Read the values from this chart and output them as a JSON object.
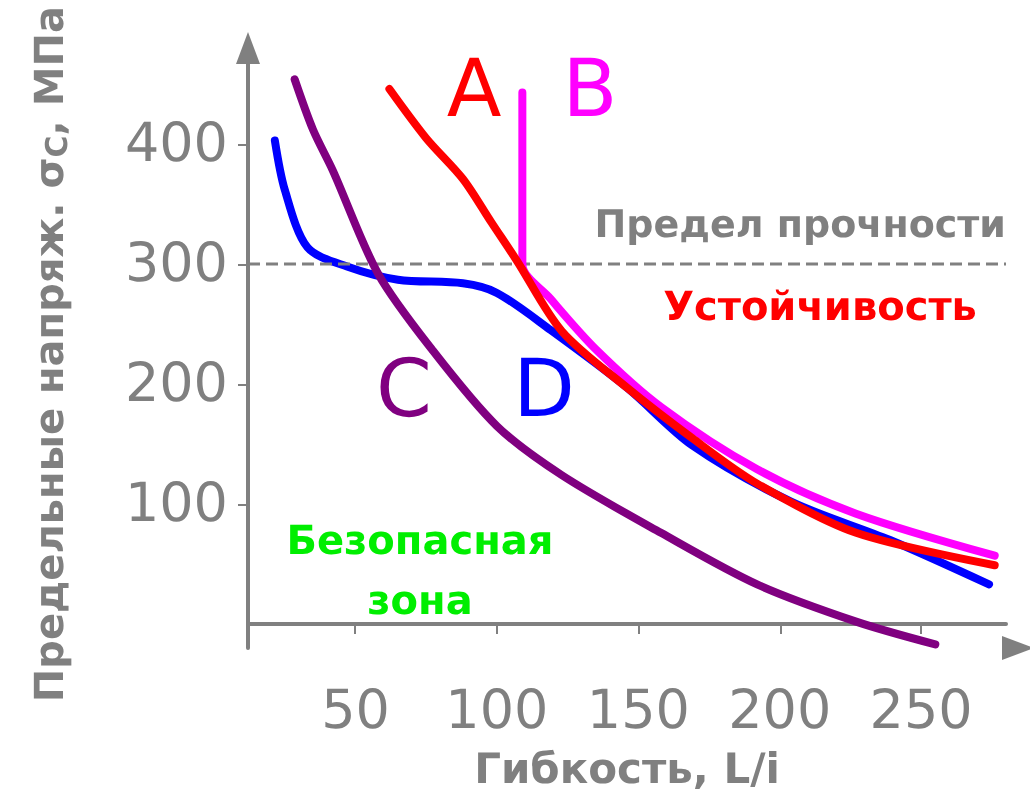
{
  "chart_data": {
    "type": "line",
    "xlabel": "Гибкость, L/i",
    "ylabel": "Предельные напряж. σ$_{C}$, МПа",
    "xlim": [
      12,
      280
    ],
    "ylim": [
      -20,
      470
    ],
    "xticks": [
      50,
      100,
      150,
      200,
      250
    ],
    "yticks": [
      100,
      200,
      300,
      400
    ],
    "grid": false,
    "marker": "none",
    "line_style": "solid",
    "series": [
      {
        "color": "#ff0000",
        "x": [
          62,
          75,
          88,
          98,
          107,
          123,
          146,
          169,
          192,
          227,
          276
        ],
        "values": [
          446,
          405,
          371,
          335,
          303,
          244,
          197,
          155,
          117,
          76,
          49
        ]
      },
      {
        "color": "#ff00ff",
        "x": [
          109,
          109,
          119,
          135,
          158,
          192,
          227,
          276
        ],
        "values": [
          443,
          300,
          271,
          229,
          181,
          129,
          92,
          57
        ]
      },
      {
        "color": "#800080",
        "x": [
          28.5,
          35,
          42,
          58,
          77,
          100,
          123,
          158,
          192,
          227,
          255
        ],
        "values": [
          454,
          412,
          378,
          292,
          229,
          165,
          124,
          76,
          33,
          2,
          -17
        ]
      },
      {
        "color": "#0000ff",
        "x": [
          21.5,
          25,
          33,
          47,
          65,
          88,
          100,
          119,
          146,
          169,
          204,
          239,
          274
        ],
        "values": [
          403,
          362,
          314,
          298,
          287,
          284,
          276,
          245,
          197,
          149,
          102,
          70,
          33
        ]
      }
    ],
    "ref_lines": [
      {
        "axis": "y",
        "value": 300,
        "label": "Предел прочности",
        "color": "#808080",
        "line_style": "dashed"
      }
    ],
    "annotations": [
      "A",
      "B",
      "C",
      "D",
      "Устойчивость",
      "Безопасная",
      "зона"
    ]
  }
}
